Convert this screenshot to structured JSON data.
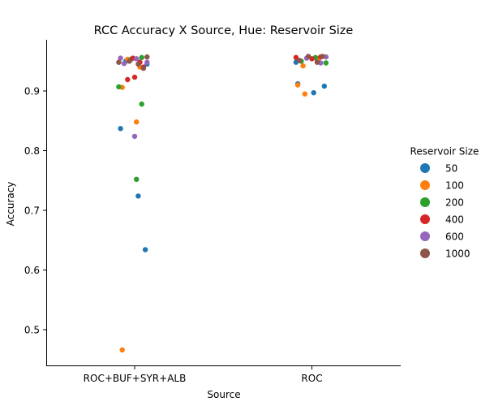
{
  "chart_data": {
    "type": "scatter",
    "subtype": "strip",
    "title": "RCC Accuracy X Source, Hue: Reservoir Size",
    "xlabel": "Source",
    "ylabel": "Accuracy",
    "categories": [
      "ROC+BUF+SYR+ALB",
      "ROC"
    ],
    "ylim": [
      0.44,
      0.985
    ],
    "yticks": [
      0.5,
      0.6,
      0.7,
      0.8,
      0.9
    ],
    "grid": false,
    "legend": {
      "title": "Reservoir Size",
      "placement": "right"
    },
    "series": [
      {
        "name": "50",
        "color": "#1f77b4",
        "points": [
          {
            "cat": "ROC+BUF+SYR+ALB",
            "jitter": -0.08,
            "y": 0.837
          },
          {
            "cat": "ROC+BUF+SYR+ALB",
            "jitter": 0.02,
            "y": 0.724
          },
          {
            "cat": "ROC+BUF+SYR+ALB",
            "jitter": 0.06,
            "y": 0.634
          },
          {
            "cat": "ROC+BUF+SYR+ALB",
            "jitter": 0.07,
            "y": 0.945
          },
          {
            "cat": "ROC+BUF+SYR+ALB",
            "jitter": -0.05,
            "y": 0.95
          },
          {
            "cat": "ROC",
            "jitter": -0.08,
            "y": 0.912
          },
          {
            "cat": "ROC",
            "jitter": 0.01,
            "y": 0.897
          },
          {
            "cat": "ROC",
            "jitter": 0.07,
            "y": 0.908
          },
          {
            "cat": "ROC",
            "jitter": -0.09,
            "y": 0.948
          },
          {
            "cat": "ROC",
            "jitter": 0.03,
            "y": 0.952
          }
        ]
      },
      {
        "name": "100",
        "color": "#ff7f0e",
        "points": [
          {
            "cat": "ROC+BUF+SYR+ALB",
            "jitter": -0.07,
            "y": 0.906
          },
          {
            "cat": "ROC+BUF+SYR+ALB",
            "jitter": 0.01,
            "y": 0.848
          },
          {
            "cat": "ROC+BUF+SYR+ALB",
            "jitter": -0.07,
            "y": 0.466
          },
          {
            "cat": "ROC+BUF+SYR+ALB",
            "jitter": -0.04,
            "y": 0.953
          },
          {
            "cat": "ROC+BUF+SYR+ALB",
            "jitter": 0.03,
            "y": 0.94
          },
          {
            "cat": "ROC",
            "jitter": -0.08,
            "y": 0.91
          },
          {
            "cat": "ROC",
            "jitter": -0.04,
            "y": 0.895
          },
          {
            "cat": "ROC",
            "jitter": -0.05,
            "y": 0.942
          },
          {
            "cat": "ROC",
            "jitter": 0.04,
            "y": 0.955
          }
        ]
      },
      {
        "name": "200",
        "color": "#2ca02c",
        "points": [
          {
            "cat": "ROC+BUF+SYR+ALB",
            "jitter": -0.09,
            "y": 0.907
          },
          {
            "cat": "ROC+BUF+SYR+ALB",
            "jitter": 0.04,
            "y": 0.878
          },
          {
            "cat": "ROC+BUF+SYR+ALB",
            "jitter": 0.01,
            "y": 0.752
          },
          {
            "cat": "ROC+BUF+SYR+ALB",
            "jitter": 0.04,
            "y": 0.956
          },
          {
            "cat": "ROC+BUF+SYR+ALB",
            "jitter": -0.02,
            "y": 0.953
          },
          {
            "cat": "ROC",
            "jitter": 0.08,
            "y": 0.947
          },
          {
            "cat": "ROC",
            "jitter": -0.06,
            "y": 0.95
          },
          {
            "cat": "ROC",
            "jitter": 0.02,
            "y": 0.956
          }
        ]
      },
      {
        "name": "400",
        "color": "#d62728",
        "points": [
          {
            "cat": "ROC+BUF+SYR+ALB",
            "jitter": 0.0,
            "y": 0.923
          },
          {
            "cat": "ROC+BUF+SYR+ALB",
            "jitter": -0.04,
            "y": 0.919
          },
          {
            "cat": "ROC+BUF+SYR+ALB",
            "jitter": 0.03,
            "y": 0.948
          },
          {
            "cat": "ROC+BUF+SYR+ALB",
            "jitter": 0.05,
            "y": 0.94
          },
          {
            "cat": "ROC+BUF+SYR+ALB",
            "jitter": -0.01,
            "y": 0.955
          },
          {
            "cat": "ROC",
            "jitter": -0.09,
            "y": 0.956
          },
          {
            "cat": "ROC",
            "jitter": 0.0,
            "y": 0.954
          },
          {
            "cat": "ROC",
            "jitter": 0.05,
            "y": 0.957
          }
        ]
      },
      {
        "name": "600",
        "color": "#9467bd",
        "points": [
          {
            "cat": "ROC+BUF+SYR+ALB",
            "jitter": 0.0,
            "y": 0.824
          },
          {
            "cat": "ROC+BUF+SYR+ALB",
            "jitter": -0.08,
            "y": 0.955
          },
          {
            "cat": "ROC+BUF+SYR+ALB",
            "jitter": -0.06,
            "y": 0.946
          },
          {
            "cat": "ROC+BUF+SYR+ALB",
            "jitter": 0.01,
            "y": 0.954
          },
          {
            "cat": "ROC+BUF+SYR+ALB",
            "jitter": 0.07,
            "y": 0.948
          },
          {
            "cat": "ROC",
            "jitter": -0.03,
            "y": 0.955
          },
          {
            "cat": "ROC",
            "jitter": 0.05,
            "y": 0.947
          },
          {
            "cat": "ROC",
            "jitter": 0.08,
            "y": 0.957
          }
        ]
      },
      {
        "name": "1000",
        "color": "#8c564b",
        "points": [
          {
            "cat": "ROC+BUF+SYR+ALB",
            "jitter": -0.09,
            "y": 0.948
          },
          {
            "cat": "ROC+BUF+SYR+ALB",
            "jitter": 0.07,
            "y": 0.957
          },
          {
            "cat": "ROC+BUF+SYR+ALB",
            "jitter": 0.05,
            "y": 0.938
          },
          {
            "cat": "ROC+BUF+SYR+ALB",
            "jitter": -0.03,
            "y": 0.95
          },
          {
            "cat": "ROC+BUF+SYR+ALB",
            "jitter": 0.02,
            "y": 0.945
          },
          {
            "cat": "ROC",
            "jitter": -0.02,
            "y": 0.958
          },
          {
            "cat": "ROC",
            "jitter": 0.03,
            "y": 0.948
          },
          {
            "cat": "ROC",
            "jitter": 0.06,
            "y": 0.958
          },
          {
            "cat": "ROC",
            "jitter": -0.07,
            "y": 0.951
          }
        ]
      }
    ]
  }
}
